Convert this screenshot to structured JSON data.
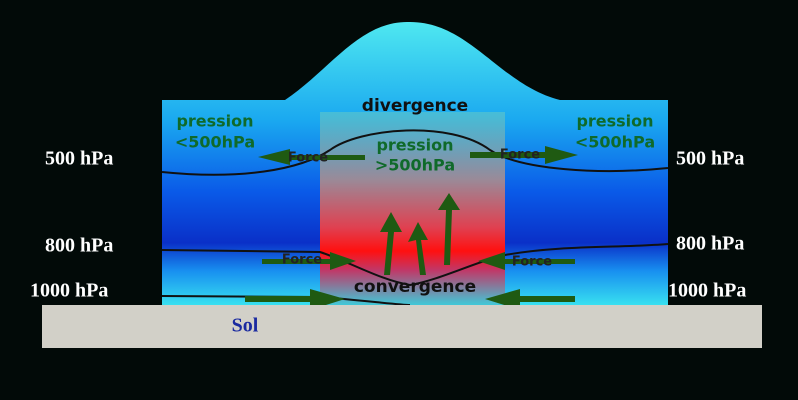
{
  "pressure_levels": {
    "left": [
      "500 hPa",
      "800 hPa",
      "1000 hPa"
    ],
    "right": [
      "500 hPa",
      "800 hPa",
      "1000 hPa"
    ]
  },
  "ground": {
    "label": "Sol"
  },
  "zones": {
    "top": "divergence",
    "bottom": "convergence"
  },
  "pressure_notes": [
    {
      "line1": "pression",
      "line2": "<500hPa"
    },
    {
      "line1": "pression",
      "line2": ">500hPa"
    },
    {
      "line1": "pression",
      "line2": "<500hPa"
    }
  ],
  "forces": [
    "Force",
    "Force",
    "Force",
    "Force"
  ]
}
